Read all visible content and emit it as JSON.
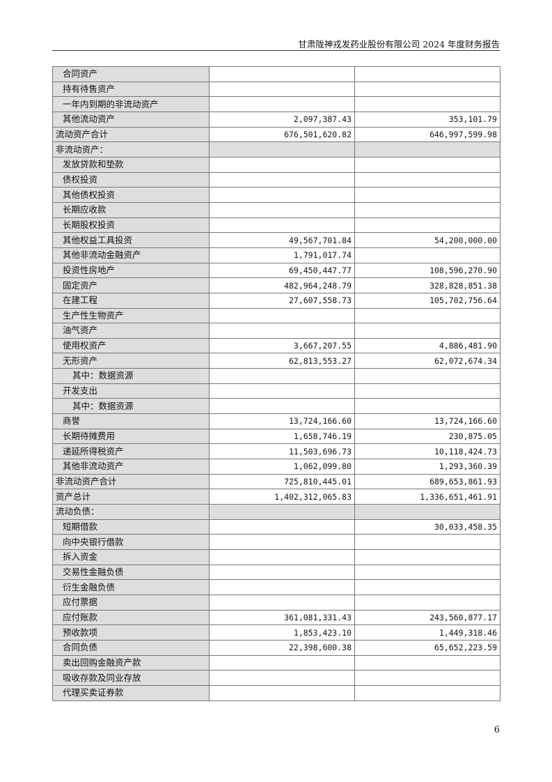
{
  "header": {
    "title": "甘肃陇神戎发药业股份有限公司 2024 年度财务报告"
  },
  "page_number": "6",
  "rows": [
    {
      "label": "合同资产",
      "level": 1,
      "current": "",
      "previous": ""
    },
    {
      "label": "持有待售资产",
      "level": 1,
      "current": "",
      "previous": ""
    },
    {
      "label": "一年内到期的非流动资产",
      "level": 1,
      "current": "",
      "previous": ""
    },
    {
      "label": "其他流动资产",
      "level": 1,
      "current": "2,097,387.43",
      "previous": "353,101.79"
    },
    {
      "label": "流动资产合计",
      "level": 0,
      "current": "676,501,620.82",
      "previous": "646,997,599.98"
    },
    {
      "label": "非流动资产：",
      "level": 0,
      "section": true,
      "current": "",
      "previous": ""
    },
    {
      "label": "发放贷款和垫款",
      "level": 1,
      "current": "",
      "previous": ""
    },
    {
      "label": "债权投资",
      "level": 1,
      "current": "",
      "previous": ""
    },
    {
      "label": "其他债权投资",
      "level": 1,
      "current": "",
      "previous": ""
    },
    {
      "label": "长期应收款",
      "level": 1,
      "current": "",
      "previous": ""
    },
    {
      "label": "长期股权投资",
      "level": 1,
      "current": "",
      "previous": ""
    },
    {
      "label": "其他权益工具投资",
      "level": 1,
      "current": "49,567,701.84",
      "previous": "54,200,000.00"
    },
    {
      "label": "其他非流动金融资产",
      "level": 1,
      "current": "1,791,017.74",
      "previous": ""
    },
    {
      "label": "投资性房地产",
      "level": 1,
      "current": "69,450,447.77",
      "previous": "108,596,270.90"
    },
    {
      "label": "固定资产",
      "level": 1,
      "current": "482,964,248.79",
      "previous": "328,828,851.38"
    },
    {
      "label": "在建工程",
      "level": 1,
      "current": "27,607,558.73",
      "previous": "105,702,756.64"
    },
    {
      "label": "生产性生物资产",
      "level": 1,
      "current": "",
      "previous": ""
    },
    {
      "label": "油气资产",
      "level": 1,
      "current": "",
      "previous": ""
    },
    {
      "label": "使用权资产",
      "level": 1,
      "current": "3,667,207.55",
      "previous": "4,886,481.90"
    },
    {
      "label": "无形资产",
      "level": 1,
      "current": "62,813,553.27",
      "previous": "62,072,674.34"
    },
    {
      "label": "其中：数据资源",
      "level": 2,
      "current": "",
      "previous": ""
    },
    {
      "label": "开发支出",
      "level": 1,
      "current": "",
      "previous": ""
    },
    {
      "label": "其中：数据资源",
      "level": 2,
      "current": "",
      "previous": ""
    },
    {
      "label": "商誉",
      "level": 1,
      "current": "13,724,166.60",
      "previous": "13,724,166.60"
    },
    {
      "label": "长期待摊费用",
      "level": 1,
      "current": "1,658,746.19",
      "previous": "230,875.05"
    },
    {
      "label": "递延所得税资产",
      "level": 1,
      "current": "11,503,696.73",
      "previous": "10,118,424.73"
    },
    {
      "label": "其他非流动资产",
      "level": 1,
      "current": "1,062,099.80",
      "previous": "1,293,360.39"
    },
    {
      "label": "非流动资产合计",
      "level": 0,
      "current": "725,810,445.01",
      "previous": "689,653,861.93"
    },
    {
      "label": "资产总计",
      "level": 0,
      "current": "1,402,312,065.83",
      "previous": "1,336,651,461.91"
    },
    {
      "label": "流动负债：",
      "level": 0,
      "section": true,
      "current": "",
      "previous": ""
    },
    {
      "label": "短期借款",
      "level": 1,
      "current": "",
      "previous": "30,033,458.35"
    },
    {
      "label": "向中央银行借款",
      "level": 1,
      "current": "",
      "previous": ""
    },
    {
      "label": "拆入资金",
      "level": 1,
      "current": "",
      "previous": ""
    },
    {
      "label": "交易性金融负债",
      "level": 1,
      "current": "",
      "previous": ""
    },
    {
      "label": "衍生金融负债",
      "level": 1,
      "current": "",
      "previous": ""
    },
    {
      "label": "应付票据",
      "level": 1,
      "current": "",
      "previous": ""
    },
    {
      "label": "应付账款",
      "level": 1,
      "current": "361,081,331.43",
      "previous": "243,560,877.17"
    },
    {
      "label": "预收款项",
      "level": 1,
      "current": "1,853,423.10",
      "previous": "1,449,318.46"
    },
    {
      "label": "合同负债",
      "level": 1,
      "current": "22,398,600.38",
      "previous": "65,652,223.59"
    },
    {
      "label": "卖出回购金融资产款",
      "level": 1,
      "current": "",
      "previous": ""
    },
    {
      "label": "吸收存款及同业存放",
      "level": 1,
      "current": "",
      "previous": ""
    },
    {
      "label": "代理买卖证券款",
      "level": 1,
      "current": "",
      "previous": ""
    }
  ]
}
